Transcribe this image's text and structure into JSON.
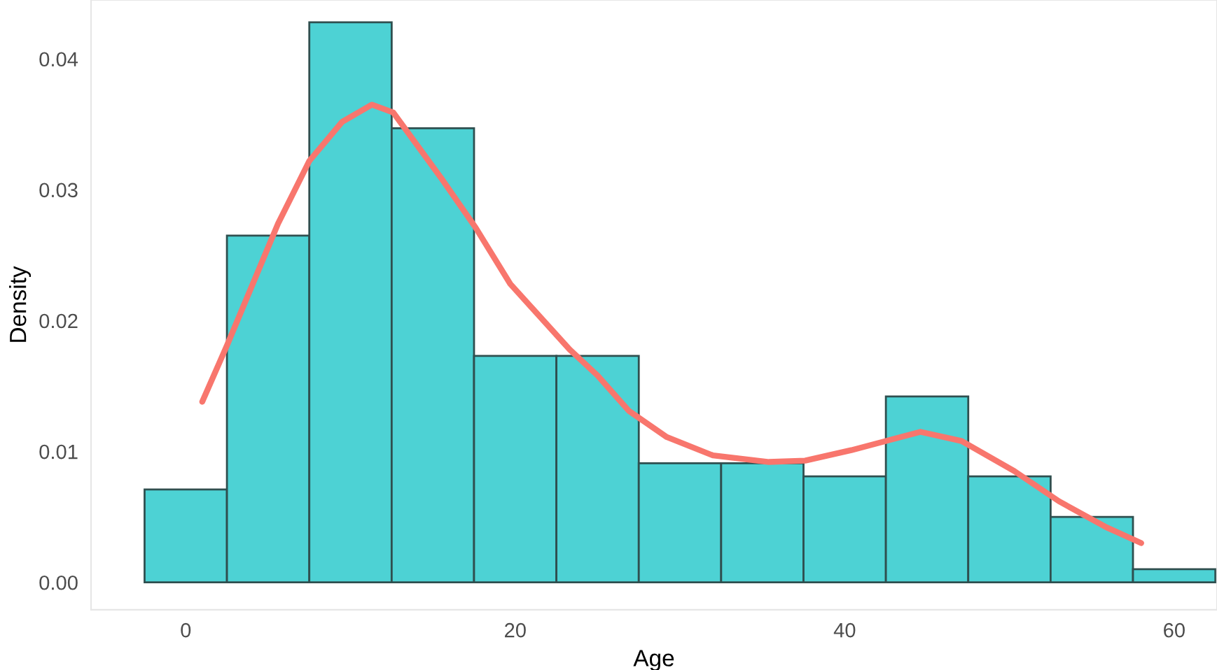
{
  "chart_data": {
    "type": "histogram",
    "xlabel": "Age",
    "ylabel": "Density",
    "bins": [
      -2.5,
      2.5,
      7.5,
      12.5,
      17.5,
      22.5,
      27.5,
      32.5,
      37.5,
      42.5,
      47.5,
      52.5,
      57.5,
      62.5
    ],
    "values": [
      0.0071,
      0.0265,
      0.0428,
      0.0347,
      0.0173,
      0.0173,
      0.0091,
      0.0091,
      0.0081,
      0.0142,
      0.0081,
      0.005,
      0.001
    ],
    "color": "#4dd2d4",
    "series": [
      {
        "type": "line",
        "color": "#f8766d",
        "x": [
          1.0,
          2.5,
          5.6,
          7.5,
          9.5,
          11.3,
          12.6,
          15.5,
          17.6,
          19.7,
          23.3,
          25.0,
          26.9,
          29.2,
          32.0,
          35.4,
          37.6,
          40.4,
          44.6,
          47.1,
          50.3,
          53.0,
          55.9,
          58.0
        ],
        "values": [
          0.0138,
          0.0181,
          0.0274,
          0.0322,
          0.0352,
          0.0365,
          0.0359,
          0.0309,
          0.0271,
          0.0228,
          0.0178,
          0.0158,
          0.0131,
          0.0111,
          0.0097,
          0.0092,
          0.0093,
          0.0101,
          0.0115,
          0.0108,
          0.0085,
          0.0062,
          0.0042,
          0.003
        ]
      }
    ],
    "xlim": [
      -5.75,
      62.6
    ],
    "ylim": [
      -0.0021,
      0.0445
    ],
    "xticks": [
      0,
      20,
      40,
      60
    ],
    "yticks": [
      {
        "value": 0,
        "label": "0.00"
      },
      {
        "value": 0.01,
        "label": "0.01"
      },
      {
        "value": 0.02,
        "label": "0.02"
      },
      {
        "value": 0.03,
        "label": "0.03"
      },
      {
        "value": 0.04,
        "label": "0.04"
      }
    ],
    "grid": false,
    "legend": false
  }
}
